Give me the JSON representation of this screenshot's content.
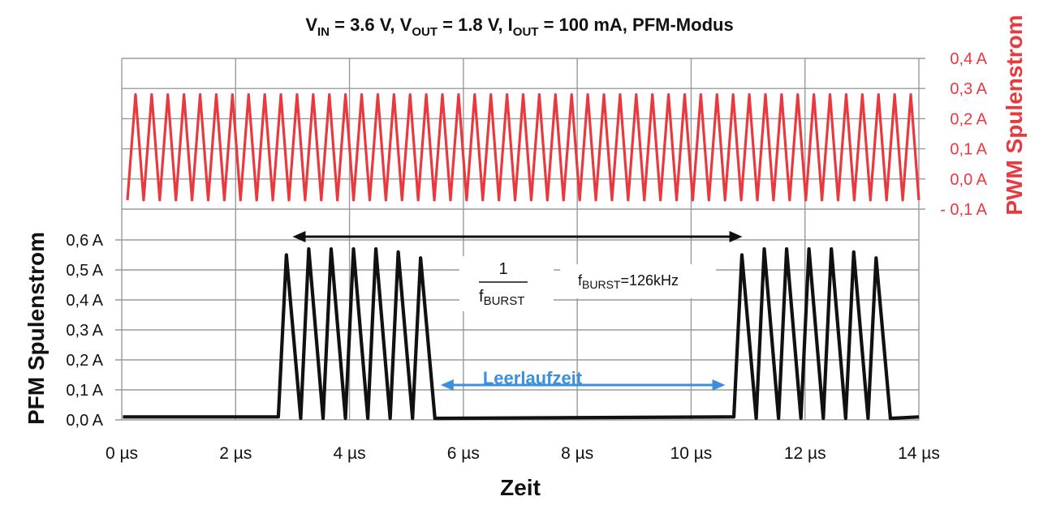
{
  "chart_data": {
    "type": "line",
    "title_parts": {
      "v": "V",
      "in": "IN",
      "eq1": " = 3.6 V, ",
      "v2": "V",
      "out": "OUT",
      "eq2": " = 1.8 V, ",
      "i": "I",
      "iout": "OUT",
      "eq3": " = 100 mA, PFM-Modus"
    },
    "xlabel": "Zeit",
    "ylabel_left": "PFM Spulenstrom",
    "ylabel_right": "PWM Spulenstrom",
    "x_unit": "µs",
    "xlim": [
      0,
      14
    ],
    "x_ticks": [
      "0 µs",
      "2 µs",
      "4 µs",
      "6 µs",
      "8 µs",
      "10 µs",
      "12 µs",
      "14 µs"
    ],
    "ylim_left": [
      0.0,
      0.6
    ],
    "y_ticks_left": [
      "0,0 A",
      "0,1 A",
      "0,2 A",
      "0,3 A",
      "0,4 A",
      "0,5 A",
      "0,6 A"
    ],
    "ylim_right": [
      -0.1,
      0.4
    ],
    "y_ticks_right": [
      "- 0,1 A",
      "0,0 A",
      "0,1 A",
      "0,2 A",
      "0,3 A",
      "0,4 A"
    ],
    "grid": true,
    "colors": {
      "pwm": "#e8393f",
      "pfm": "#111111",
      "annotation": "#3b8fdc",
      "grid": "#9a9a9a"
    },
    "series": [
      {
        "name": "PWM Spulenstrom",
        "axis": "right",
        "waveform": "triangle",
        "min": -0.07,
        "max": 0.28,
        "cycles": 49,
        "x_range": [
          0.1,
          14.0
        ]
      },
      {
        "name": "PFM Spulenstrom",
        "axis": "left",
        "baseline": 0.01,
        "bursts": [
          {
            "x_start": 2.75,
            "x_end": 5.5,
            "peaks": [
              0.55,
              0.57,
              0.57,
              0.57,
              0.57,
              0.56,
              0.54
            ]
          },
          {
            "x_start": 10.75,
            "x_end": 13.5,
            "peaks": [
              0.55,
              0.57,
              0.57,
              0.57,
              0.57,
              0.56,
              0.54
            ]
          }
        ]
      }
    ],
    "annotations": {
      "period": {
        "x_start": 3.0,
        "x_end": 10.9,
        "y": 0.6,
        "num": "1",
        "den_f": "f",
        "den_sub": "BURST"
      },
      "freq": {
        "f": "f",
        "sub": "BURST",
        "value": "=126kHz"
      },
      "idle": {
        "label": "Leerlaufzeit",
        "x_start": 5.6,
        "x_end": 10.6,
        "y": 0.1
      }
    }
  }
}
